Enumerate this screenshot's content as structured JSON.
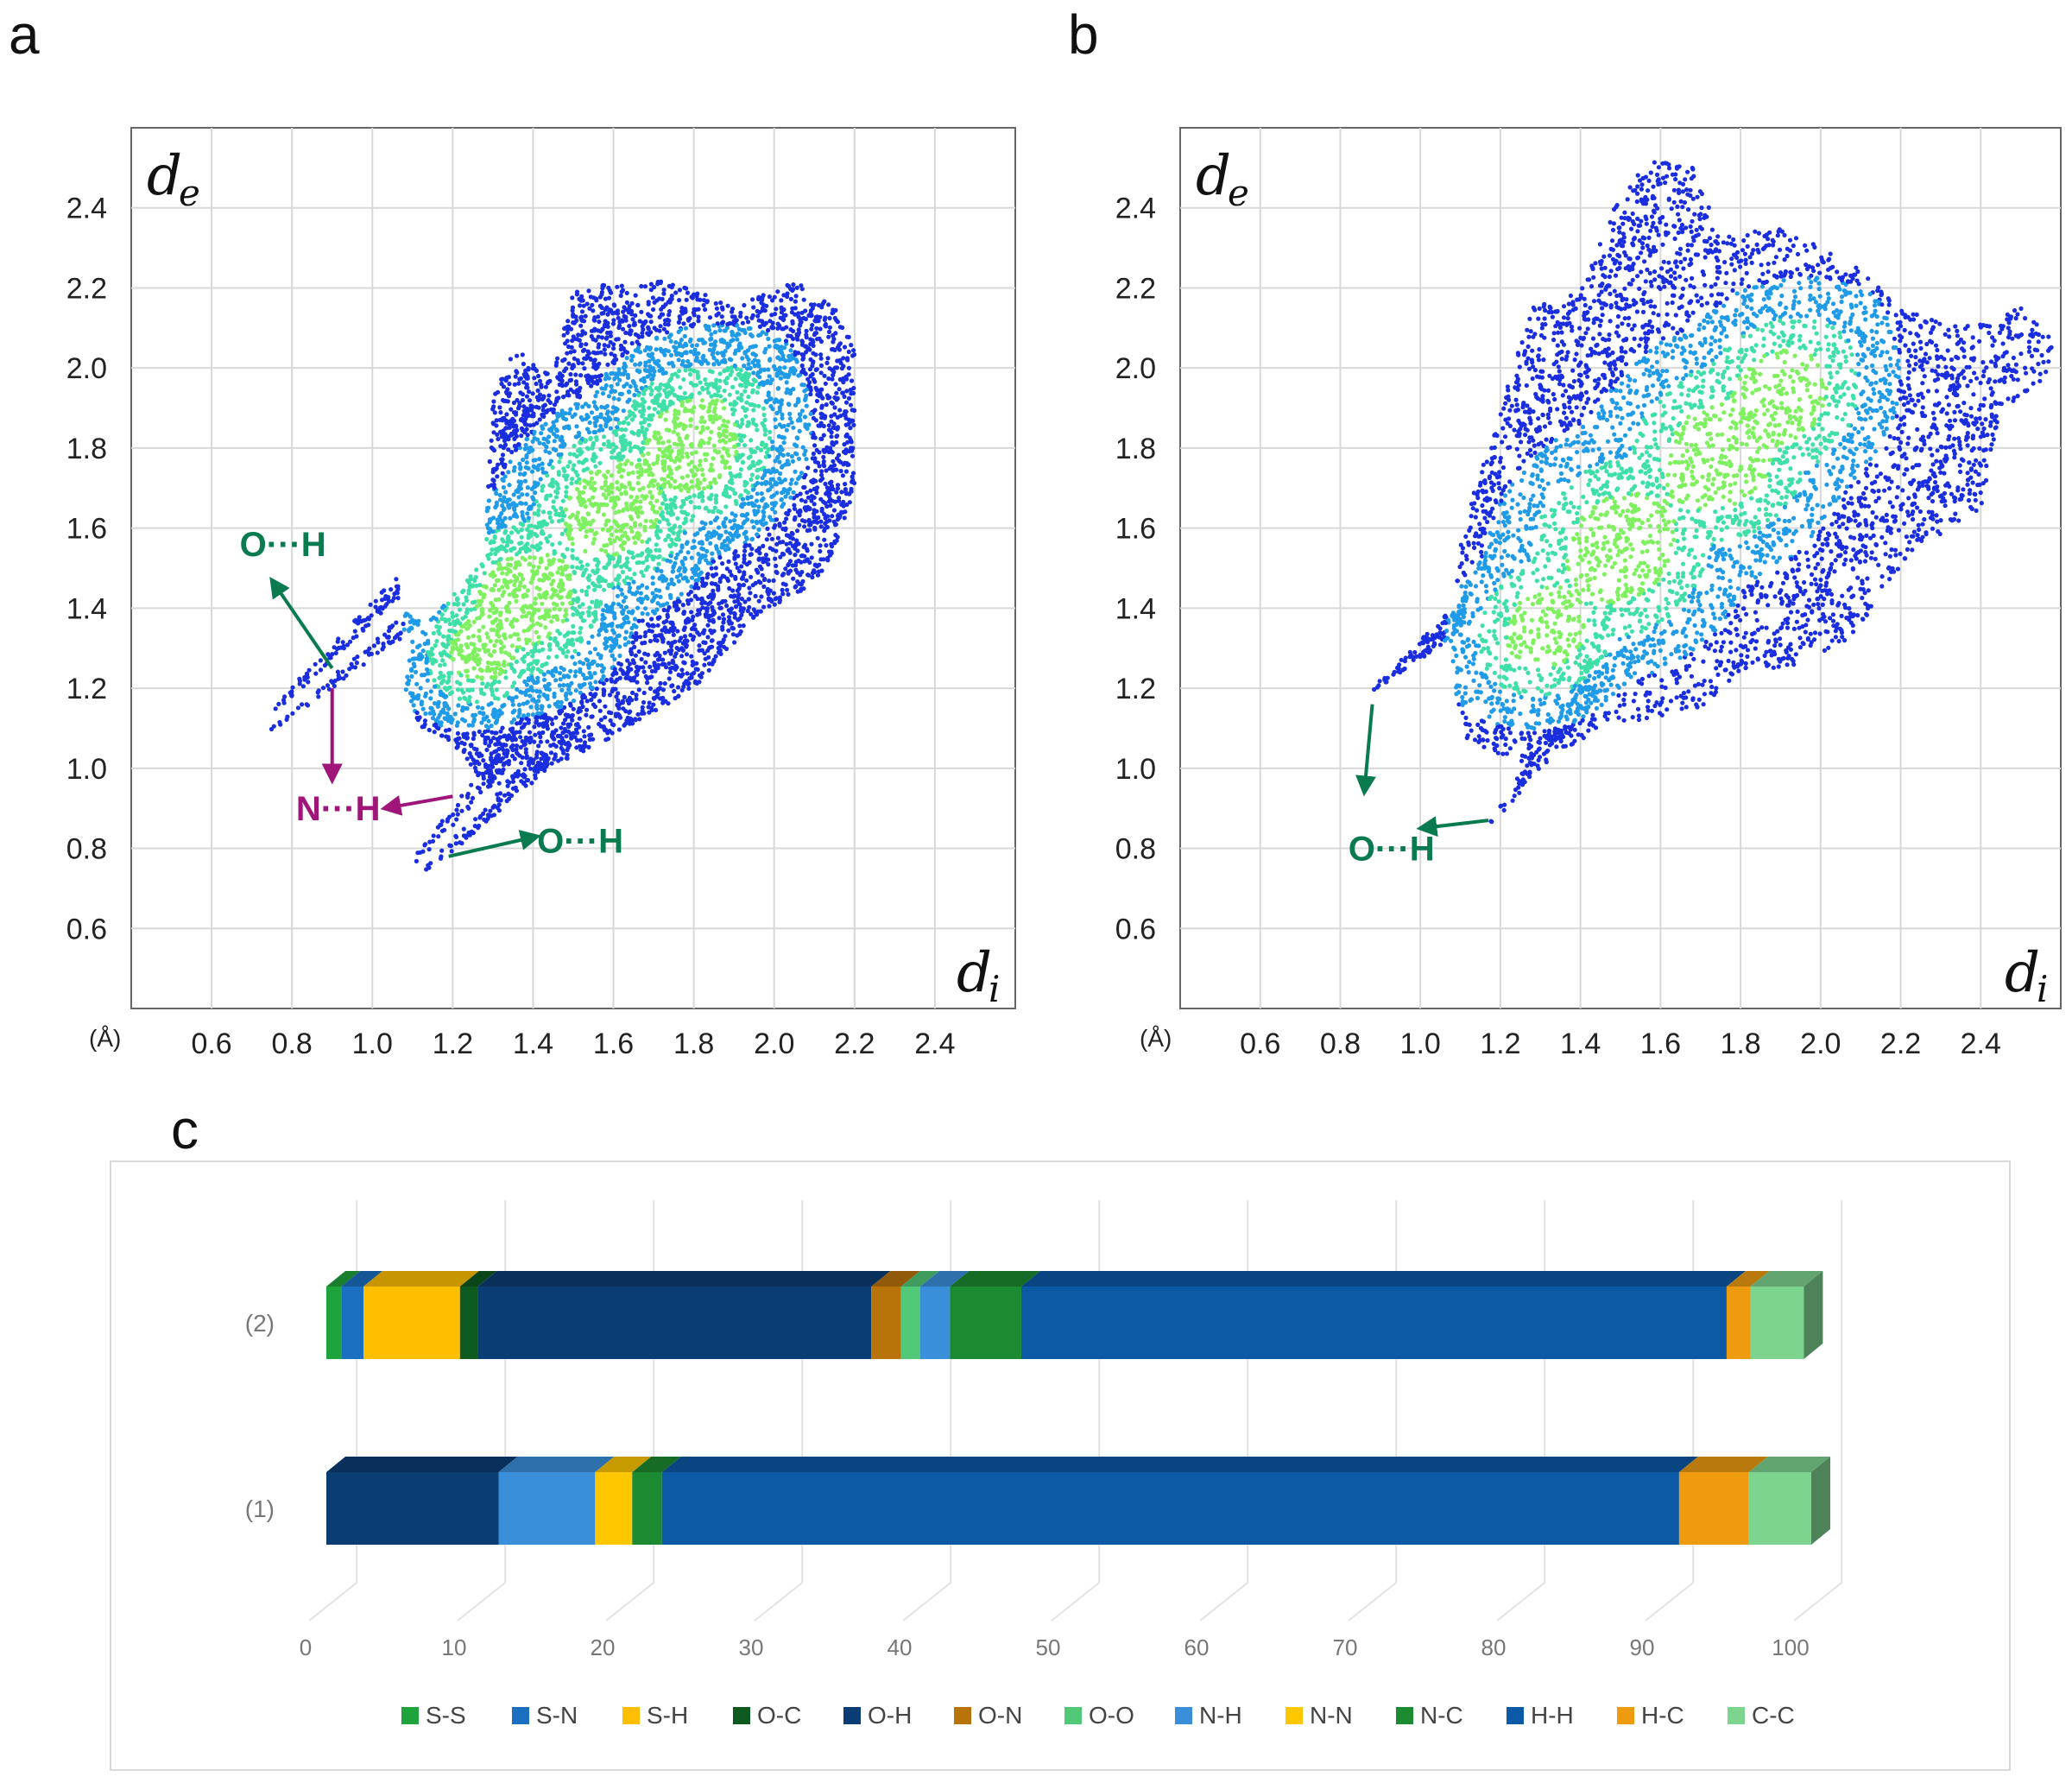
{
  "panels": {
    "a": "a",
    "b": "b",
    "c": "c"
  },
  "colors": {
    "oh_annotation": "#0a7a4f",
    "nh_annotation": "#a0157a",
    "scatter_outer": "#1a2ee0",
    "scatter_mid": "#1f9be8",
    "scatter_core": "#3fe0a8",
    "scatter_hot": "#7ff060"
  },
  "chart_data": [
    {
      "id": "a",
      "type": "scatter",
      "title": "",
      "ylabel_main": "d",
      "ylabel_sub": "e",
      "xlabel_main": "d",
      "xlabel_sub": "i",
      "unit_label": "(Å)",
      "xlim": [
        0.4,
        2.6
      ],
      "ylim": [
        0.4,
        2.6
      ],
      "xticks": [
        "0.6",
        "0.8",
        "1.0",
        "1.2",
        "1.4",
        "1.6",
        "1.8",
        "2.0",
        "2.2",
        "2.4"
      ],
      "yticks": [
        "0.6",
        "0.8",
        "1.0",
        "1.2",
        "1.4",
        "1.6",
        "1.8",
        "2.0",
        "2.2",
        "2.4"
      ],
      "regions": [
        {
          "name": "main",
          "polygon": [
            [
              1.08,
              1.2
            ],
            [
              1.1,
              1.32
            ],
            [
              1.28,
              1.52
            ],
            [
              1.3,
              1.95
            ],
            [
              1.35,
              2.05
            ],
            [
              1.45,
              1.98
            ],
            [
              1.5,
              2.2
            ],
            [
              1.7,
              2.22
            ],
            [
              1.8,
              2.2
            ],
            [
              1.9,
              2.15
            ],
            [
              2.05,
              2.22
            ],
            [
              2.15,
              2.15
            ],
            [
              2.2,
              2.05
            ],
            [
              2.2,
              1.7
            ],
            [
              2.15,
              1.55
            ],
            [
              2.1,
              1.45
            ],
            [
              1.98,
              1.4
            ],
            [
              1.8,
              1.2
            ],
            [
              1.55,
              1.05
            ],
            [
              1.3,
              0.95
            ],
            [
              1.2,
              1.05
            ],
            [
              1.12,
              1.1
            ]
          ]
        },
        {
          "name": "spike-upper-1",
          "polygon": [
            [
              0.73,
              1.13
            ],
            [
              0.76,
              1.14
            ],
            [
              1.08,
              1.44
            ],
            [
              1.06,
              1.48
            ]
          ]
        },
        {
          "name": "spike-upper-2",
          "polygon": [
            [
              0.73,
              1.09
            ],
            [
              0.76,
              1.1
            ],
            [
              1.12,
              1.36
            ],
            [
              1.1,
              1.4
            ]
          ]
        },
        {
          "name": "spike-lower-1",
          "polygon": [
            [
              1.08,
              0.75
            ],
            [
              1.11,
              0.76
            ],
            [
              1.45,
              1.12
            ],
            [
              1.4,
              1.16
            ]
          ]
        },
        {
          "name": "spike-lower-2",
          "polygon": [
            [
              1.12,
              0.74
            ],
            [
              1.15,
              0.75
            ],
            [
              1.5,
              1.05
            ],
            [
              1.46,
              1.1
            ]
          ]
        }
      ],
      "hotspots": [
        {
          "x": 1.8,
          "y": 1.8,
          "r": 0.12
        },
        {
          "x": 1.6,
          "y": 1.65,
          "r": 0.12
        },
        {
          "x": 1.38,
          "y": 1.42,
          "r": 0.12
        },
        {
          "x": 1.28,
          "y": 1.3,
          "r": 0.08
        }
      ],
      "annotations": [
        {
          "text": "O···H",
          "color_key": "oh_annotation",
          "label_x": 0.67,
          "label_y": 1.56,
          "arrow_from": [
            0.9,
            1.25
          ],
          "arrow_to": [
            0.75,
            1.47
          ]
        },
        {
          "text": "N···H",
          "color_key": "nh_annotation",
          "label_x": 0.81,
          "label_y": 0.9,
          "arrow_from": [
            0.9,
            1.2
          ],
          "arrow_to": [
            0.9,
            0.97
          ]
        },
        {
          "text": "N···H",
          "color_key": "nh_annotation",
          "label_x": null,
          "label_y": null,
          "arrow_from": [
            1.2,
            0.93
          ],
          "arrow_to": [
            1.03,
            0.9
          ]
        },
        {
          "text": "O···H",
          "color_key": "oh_annotation",
          "label_x": 1.41,
          "label_y": 0.82,
          "arrow_from": [
            1.19,
            0.78
          ],
          "arrow_to": [
            1.41,
            0.83
          ]
        }
      ]
    },
    {
      "id": "b",
      "type": "scatter",
      "title": "",
      "ylabel_main": "d",
      "ylabel_sub": "e",
      "xlabel_main": "d",
      "xlabel_sub": "i",
      "unit_label": "(Å)",
      "xlim": [
        0.4,
        2.6
      ],
      "ylim": [
        0.4,
        2.6
      ],
      "xticks": [
        "0.6",
        "0.8",
        "1.0",
        "1.2",
        "1.4",
        "1.6",
        "1.8",
        "2.0",
        "2.2",
        "2.4"
      ],
      "yticks": [
        "0.6",
        "0.8",
        "1.0",
        "1.2",
        "1.4",
        "1.6",
        "1.8",
        "2.0",
        "2.2",
        "2.4"
      ],
      "regions": [
        {
          "name": "main",
          "polygon": [
            [
              1.07,
              1.25
            ],
            [
              1.1,
              1.6
            ],
            [
              1.2,
              1.9
            ],
            [
              1.28,
              2.15
            ],
            [
              1.4,
              2.2
            ],
            [
              1.5,
              2.45
            ],
            [
              1.6,
              2.53
            ],
            [
              1.68,
              2.5
            ],
            [
              1.75,
              2.33
            ],
            [
              1.9,
              2.35
            ],
            [
              2.1,
              2.25
            ],
            [
              2.2,
              2.15
            ],
            [
              2.35,
              2.1
            ],
            [
              2.5,
              2.15
            ],
            [
              2.6,
              2.05
            ],
            [
              2.55,
              1.95
            ],
            [
              2.45,
              1.9
            ],
            [
              2.4,
              1.65
            ],
            [
              2.25,
              1.55
            ],
            [
              2.15,
              1.45
            ],
            [
              2.1,
              1.35
            ],
            [
              1.98,
              1.25
            ],
            [
              1.82,
              1.25
            ],
            [
              1.7,
              1.15
            ],
            [
              1.45,
              1.1
            ],
            [
              1.3,
              1.0
            ],
            [
              1.2,
              1.02
            ],
            [
              1.12,
              1.05
            ]
          ]
        },
        {
          "name": "spike-upper",
          "polygon": [
            [
              0.85,
              1.17
            ],
            [
              0.88,
              1.2
            ],
            [
              1.12,
              1.44
            ],
            [
              1.1,
              1.34
            ]
          ]
        },
        {
          "name": "spike-lower",
          "polygon": [
            [
              1.17,
              0.86
            ],
            [
              1.2,
              0.88
            ],
            [
              1.5,
              1.25
            ],
            [
              1.42,
              1.28
            ]
          ]
        }
      ],
      "hotspots": [
        {
          "x": 1.9,
          "y": 1.92,
          "r": 0.12
        },
        {
          "x": 1.75,
          "y": 1.78,
          "r": 0.14
        },
        {
          "x": 1.5,
          "y": 1.55,
          "r": 0.14
        },
        {
          "x": 1.32,
          "y": 1.35,
          "r": 0.1
        }
      ],
      "annotations": [
        {
          "text": "O···H",
          "color_key": "oh_annotation",
          "label_x": 0.82,
          "label_y": 0.8,
          "arrow_from": [
            0.88,
            1.16
          ],
          "arrow_to": [
            0.86,
            0.94
          ]
        },
        {
          "text": "O···H",
          "color_key": "oh_annotation",
          "label_x": null,
          "label_y": null,
          "arrow_from": [
            1.17,
            0.87
          ],
          "arrow_to": [
            1.0,
            0.85
          ]
        }
      ]
    },
    {
      "id": "c",
      "type": "bar",
      "orientation": "horizontal-stacked",
      "title": "",
      "xlim": [
        0,
        100
      ],
      "xticks": [
        "0",
        "10",
        "20",
        "30",
        "40",
        "50",
        "60",
        "70",
        "80",
        "90",
        "100"
      ],
      "categories": [
        "(2)",
        "(1)"
      ],
      "legend": [
        "S-S",
        "S-N",
        "S-H",
        "O-C",
        "O-H",
        "O-N",
        "O-O",
        "N-H",
        "N-N",
        "N-C",
        "H-H",
        "H-C",
        "C-C"
      ],
      "legend_colors": [
        "#1fa33c",
        "#1b6fc0",
        "#ffbf00",
        "#0d5a20",
        "#0a3d73",
        "#b8740a",
        "#50c878",
        "#3a8fdb",
        "#ffc700",
        "#1c8a30",
        "#0c5aa6",
        "#ef9b0f",
        "#7dd48f"
      ],
      "series": [
        {
          "name": "S-S",
          "values": [
            1.0,
            0
          ]
        },
        {
          "name": "S-N",
          "values": [
            1.5,
            0
          ]
        },
        {
          "name": "S-H",
          "values": [
            6.5,
            0
          ]
        },
        {
          "name": "O-C",
          "values": [
            1.2,
            0
          ]
        },
        {
          "name": "O-H",
          "values": [
            26.5,
            11.6
          ]
        },
        {
          "name": "O-N",
          "values": [
            2.0,
            0
          ]
        },
        {
          "name": "O-O",
          "values": [
            1.3,
            0
          ]
        },
        {
          "name": "N-H",
          "values": [
            2.0,
            6.5
          ]
        },
        {
          "name": "N-N",
          "values": [
            0,
            2.5
          ]
        },
        {
          "name": "N-C",
          "values": [
            4.8,
            2.0
          ]
        },
        {
          "name": "H-H",
          "values": [
            47.5,
            68.5
          ]
        },
        {
          "name": "H-C",
          "values": [
            1.6,
            4.7
          ]
        },
        {
          "name": "C-C",
          "values": [
            3.6,
            4.2
          ]
        }
      ]
    }
  ]
}
